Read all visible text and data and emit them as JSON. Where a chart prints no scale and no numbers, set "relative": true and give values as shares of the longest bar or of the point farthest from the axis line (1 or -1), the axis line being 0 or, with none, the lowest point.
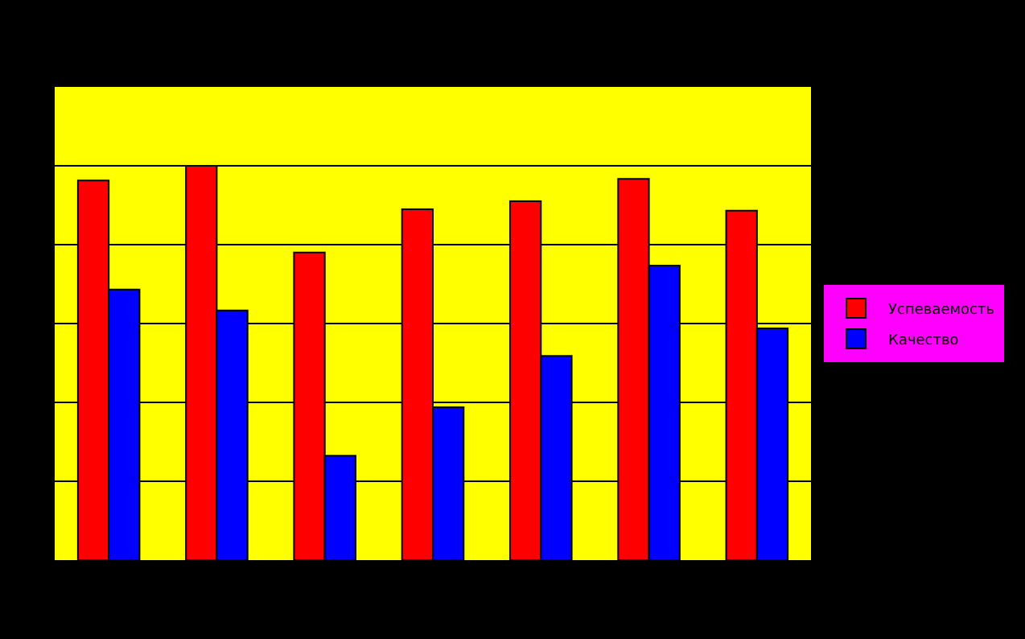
{
  "chart_data": {
    "type": "bar",
    "relative": true,
    "categories": [
      null,
      null,
      null,
      null,
      null,
      null,
      null
    ],
    "series": [
      {
        "name": "Успеваемость",
        "color": "#ff0000",
        "values": [
          0.963,
          1,
          0.78,
          0.89,
          0.91,
          0.967,
          0.886
        ]
      },
      {
        "name": "Качество",
        "color": "#0000ff",
        "values": [
          0.686,
          0.633,
          0.265,
          0.388,
          0.518,
          0.747,
          0.588
        ]
      }
    ],
    "grid": "y",
    "legend": "right"
  }
}
